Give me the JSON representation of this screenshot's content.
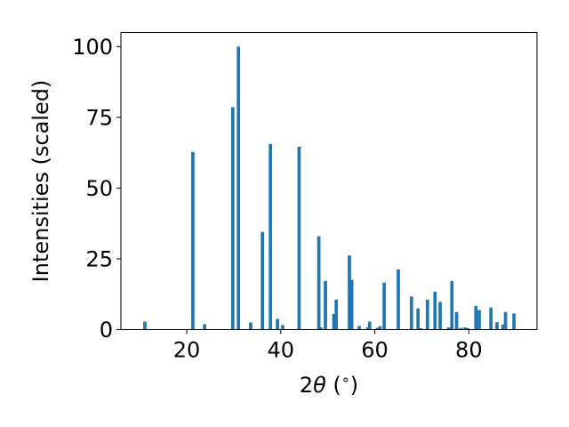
{
  "chart_data": {
    "type": "bar",
    "xlabel_prefix": "2",
    "xlabel_symbol": "θ",
    "xlabel_suffix": " (",
    "xlabel_degree": "∘",
    "xlabel_close": ")",
    "ylabel": "Intensities (scaled)",
    "xlim": [
      6.0,
      94.5
    ],
    "ylim": [
      0,
      105
    ],
    "xticks": [
      20,
      40,
      60,
      80
    ],
    "yticks": [
      0,
      25,
      50,
      75,
      100
    ],
    "bar_color": "#1f77b4",
    "bar_width": 0.7,
    "grid": false,
    "x": [
      11.1,
      21.3,
      23.8,
      29.8,
      31.0,
      33.6,
      36.1,
      37.8,
      39.3,
      40.4,
      43.9,
      48.1,
      48.5,
      49.5,
      51.3,
      51.8,
      54.6,
      55.1,
      56.7,
      58.5,
      58.9,
      60.5,
      61.1,
      62.0,
      65.0,
      67.8,
      69.2,
      69.8,
      71.2,
      72.8,
      73.9,
      75.7,
      76.4,
      77.4,
      78.3,
      79.2,
      79.8,
      81.5,
      82.2,
      84.7,
      86.0,
      87.3,
      87.8,
      89.6
    ],
    "values": [
      2.8,
      62.8,
      1.9,
      78.6,
      100.0,
      2.5,
      34.5,
      65.6,
      3.8,
      1.6,
      64.6,
      33.0,
      0.8,
      17.2,
      5.5,
      10.6,
      26.2,
      17.6,
      1.3,
      0.8,
      2.8,
      0.6,
      1.2,
      16.6,
      21.3,
      11.7,
      7.5,
      0.5,
      10.6,
      13.4,
      9.8,
      0.8,
      17.2,
      6.2,
      0.6,
      0.8,
      0.5,
      8.4,
      6.9,
      7.8,
      2.6,
      1.8,
      6.2,
      5.7
    ]
  }
}
